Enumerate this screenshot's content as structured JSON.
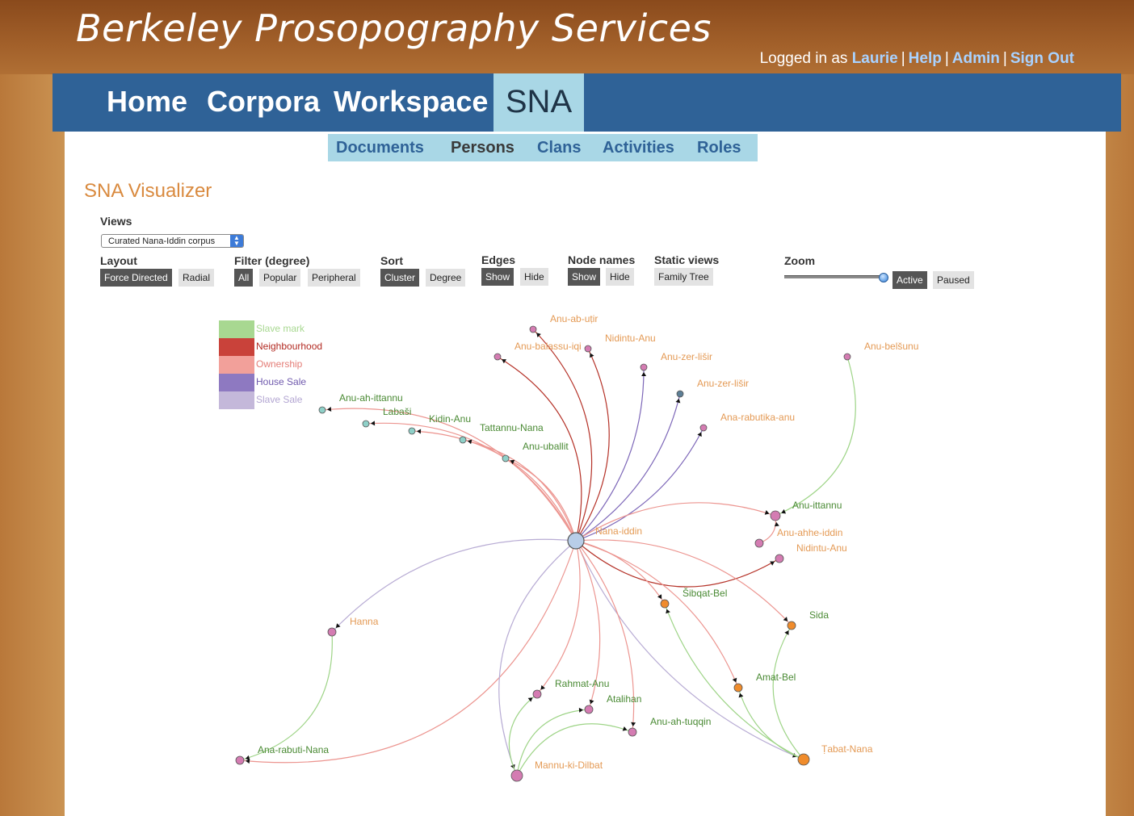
{
  "site_title": "Berkeley Prosopography Services",
  "login": {
    "prefix": "Logged in as",
    "user": "Laurie",
    "help": "Help",
    "admin": "Admin",
    "signout": "Sign Out",
    "separator": "|"
  },
  "main_nav": [
    "Home",
    "Corpora",
    "Workspace",
    "SNA"
  ],
  "sub_nav": [
    "Documents",
    "Persons",
    "Clans",
    "Activities",
    "Roles"
  ],
  "page_heading": "SNA Visualizer",
  "controls": {
    "views_label": "Views",
    "views_value": "Curated Nana-Iddin corpus",
    "layout_label": "Layout",
    "layout_opts": [
      "Force Directed",
      "Radial"
    ],
    "filter_label": "Filter (degree)",
    "filter_opts": [
      "All",
      "Popular",
      "Peripheral"
    ],
    "sort_label": "Sort",
    "sort_opts": [
      "Cluster",
      "Degree"
    ],
    "edges_label": "Edges",
    "edges_opts": [
      "Show",
      "Hide"
    ],
    "names_label": "Node names",
    "names_opts": [
      "Show",
      "Hide"
    ],
    "static_label": "Static views",
    "static_opts": [
      "Family Tree"
    ],
    "zoom_label": "Zoom",
    "zoom_opts": [
      "Active",
      "Paused"
    ]
  },
  "legend": [
    {
      "label": "Slave mark",
      "color": "#a8d891",
      "text_color": "#a8d891"
    },
    {
      "label": "Neighbourhood",
      "color": "#c9423a",
      "text_color": "#b22a22"
    },
    {
      "label": "Ownership",
      "color": "#f2a09a",
      "text_color": "#e47d77"
    },
    {
      "label": "House Sale",
      "color": "#8e79c1",
      "text_color": "#6f59ad"
    },
    {
      "label": "Slave Sale",
      "color": "#c4b8da",
      "text_color": "#b3a6d2"
    }
  ],
  "colors": {
    "label_orange": "#e49a55",
    "label_green": "#4a8a34",
    "node_pink": "#d47cb2",
    "node_orange": "#f08c2c",
    "node_hub": "#b8cde8",
    "node_teal": "#8fd0c8"
  },
  "graph": {
    "nodes": [
      {
        "id": "nana",
        "name": "Nana-iddin",
        "color": "node_hub",
        "label_color": "label_orange"
      },
      {
        "id": "anuab",
        "name": "Anu-ab-uṭir",
        "color": "node_pink",
        "label_color": "label_orange"
      },
      {
        "id": "anubal",
        "name": "Anu-balassu-iqi",
        "color": "node_pink",
        "label_color": "label_orange"
      },
      {
        "id": "nidintu1",
        "name": "Nidintu-Anu",
        "color": "node_pink",
        "label_color": "label_orange"
      },
      {
        "id": "zer1",
        "name": "Anu-zer-lišir",
        "color": "node_pink",
        "label_color": "label_orange"
      },
      {
        "id": "zer2",
        "name": "Anu-zer-lišir",
        "color": "node_slate",
        "label_color": "label_orange"
      },
      {
        "id": "rabutika",
        "name": "Ana-rabutika-anu",
        "color": "node_pink",
        "label_color": "label_orange"
      },
      {
        "id": "belsunu",
        "name": "Anu-belšunu",
        "color": "node_pink",
        "label_color": "label_orange"
      },
      {
        "id": "ahittannu",
        "name": "Anu-ah-ittannu",
        "color": "node_teal",
        "label_color": "label_green"
      },
      {
        "id": "labasi",
        "name": "Labaši",
        "color": "node_teal",
        "label_color": "label_green"
      },
      {
        "id": "kidin",
        "name": "Kidin-Anu",
        "color": "node_teal",
        "label_color": "label_green"
      },
      {
        "id": "tattannu",
        "name": "Tattannu-Nana",
        "color": "node_teal",
        "label_color": "label_green"
      },
      {
        "id": "uballit",
        "name": "Anu-uballit",
        "color": "node_teal",
        "label_color": "label_green"
      },
      {
        "id": "ittannu",
        "name": "Anu-ittannu",
        "color": "node_pink",
        "label_color": "label_green"
      },
      {
        "id": "ahhe",
        "name": "Anu-ahhe-iddin",
        "color": "node_pink",
        "label_color": "label_orange"
      },
      {
        "id": "nidintu2",
        "name": "Nidintu-Anu",
        "color": "node_pink",
        "label_color": "label_orange"
      },
      {
        "id": "sibqat",
        "name": "Šibqat-Bel",
        "color": "node_orange",
        "label_color": "label_green"
      },
      {
        "id": "sida",
        "name": "Sida",
        "color": "node_orange",
        "label_color": "label_green"
      },
      {
        "id": "amatbel",
        "name": "Amat-Bel",
        "color": "node_orange",
        "label_color": "label_green"
      },
      {
        "id": "tabat",
        "name": "Ṭabat-Nana",
        "color": "node_orange",
        "label_color": "label_orange"
      },
      {
        "id": "hanna",
        "name": "Hanna",
        "color": "node_pink",
        "label_color": "label_orange"
      },
      {
        "id": "rabutinana",
        "name": "Ana-rabuti-Nana",
        "color": "node_pink",
        "label_color": "label_green"
      },
      {
        "id": "rahmat",
        "name": "Rahmat-Anu",
        "color": "node_pink",
        "label_color": "label_green"
      },
      {
        "id": "atalihan",
        "name": "Atalihan",
        "color": "node_pink",
        "label_color": "label_green"
      },
      {
        "id": "tuqqin",
        "name": "Anu-ah-tuqqin",
        "color": "node_pink",
        "label_color": "label_green"
      },
      {
        "id": "mannu",
        "name": "Mannu-ki-Dilbat",
        "color": "node_pink",
        "label_color": "label_orange"
      }
    ],
    "edges": [
      {
        "s": "nana",
        "t": "anuab",
        "type": "Neighbourhood"
      },
      {
        "s": "nana",
        "t": "anubal",
        "type": "Neighbourhood"
      },
      {
        "s": "nana",
        "t": "nidintu1",
        "type": "Neighbourhood"
      },
      {
        "s": "nana",
        "t": "zer1",
        "type": "House Sale"
      },
      {
        "s": "nana",
        "t": "zer2",
        "type": "House Sale"
      },
      {
        "s": "nana",
        "t": "rabutika",
        "type": "House Sale"
      },
      {
        "s": "nana",
        "t": "ahittannu",
        "type": "Ownership"
      },
      {
        "s": "nana",
        "t": "labasi",
        "type": "Ownership"
      },
      {
        "s": "nana",
        "t": "kidin",
        "type": "Ownership"
      },
      {
        "s": "nana",
        "t": "tattannu",
        "type": "Ownership"
      },
      {
        "s": "nana",
        "t": "uballit",
        "type": "Ownership"
      },
      {
        "s": "nana",
        "t": "ittannu",
        "type": "Ownership"
      },
      {
        "s": "nana",
        "t": "nidintu2",
        "type": "Neighbourhood"
      },
      {
        "s": "nana",
        "t": "sibqat",
        "type": "Ownership"
      },
      {
        "s": "nana",
        "t": "sida",
        "type": "Ownership"
      },
      {
        "s": "nana",
        "t": "amatbel",
        "type": "Ownership"
      },
      {
        "s": "nana",
        "t": "tabat",
        "type": "Slave Sale"
      },
      {
        "s": "nana",
        "t": "hanna",
        "type": "Slave Sale"
      },
      {
        "s": "nana",
        "t": "rabutinana",
        "type": "Ownership"
      },
      {
        "s": "nana",
        "t": "rahmat",
        "type": "Ownership"
      },
      {
        "s": "nana",
        "t": "atalihan",
        "type": "Ownership"
      },
      {
        "s": "nana",
        "t": "tuqqin",
        "type": "Ownership"
      },
      {
        "s": "nana",
        "t": "mannu",
        "type": "Slave Sale"
      },
      {
        "s": "belsunu",
        "t": "ittannu",
        "type": "Slave mark"
      },
      {
        "s": "ahhe",
        "t": "ittannu",
        "type": "Ownership"
      },
      {
        "s": "hanna",
        "t": "rabutinana",
        "type": "Slave mark"
      },
      {
        "s": "tabat",
        "t": "sibqat",
        "type": "Slave mark"
      },
      {
        "s": "tabat",
        "t": "sida",
        "type": "Slave mark"
      },
      {
        "s": "tabat",
        "t": "amatbel",
        "type": "Slave mark"
      },
      {
        "s": "mannu",
        "t": "rahmat",
        "type": "Slave mark"
      },
      {
        "s": "mannu",
        "t": "atalihan",
        "type": "Slave mark"
      },
      {
        "s": "mannu",
        "t": "tuqqin",
        "type": "Slave mark"
      }
    ]
  }
}
